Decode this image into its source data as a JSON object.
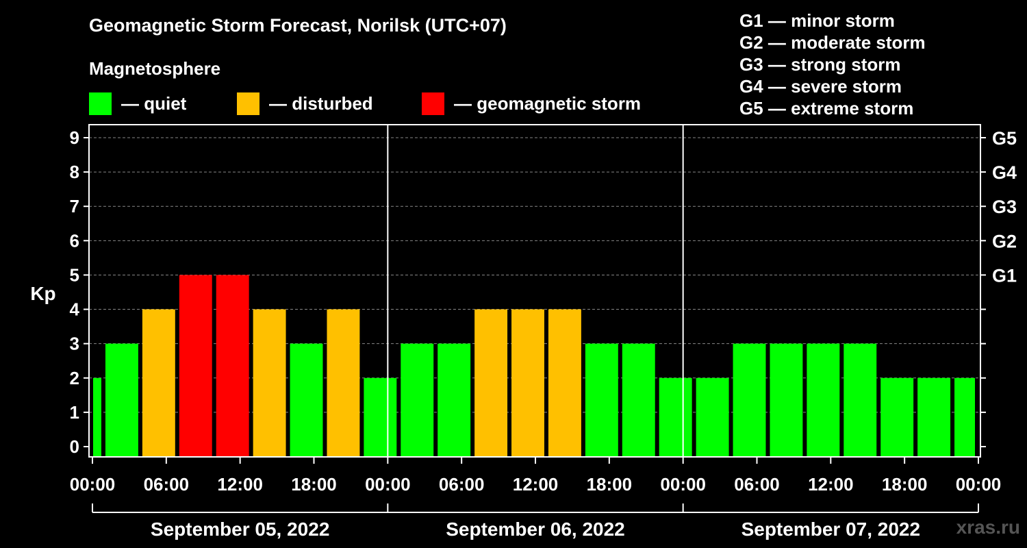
{
  "title": "Geomagnetic Storm Forecast, Norilsk (UTC+07)",
  "subtitle": "Magnetosphere",
  "legend": [
    {
      "label": "— quiet",
      "color": "#00ff00"
    },
    {
      "label": "— disturbed",
      "color": "#ffc000"
    },
    {
      "label": "— geomagnetic storm",
      "color": "#ff0000"
    }
  ],
  "g_scale": [
    "G1 — minor storm",
    "G2 — moderate storm",
    "G3 — strong storm",
    "G4 — severe storm",
    "G5 — extreme storm"
  ],
  "watermark": "xras.ru",
  "chart_data": {
    "type": "bar",
    "ylabel": "Kp",
    "ylim": [
      0,
      9
    ],
    "yticks": [
      0,
      1,
      2,
      3,
      4,
      5,
      6,
      7,
      8,
      9
    ],
    "right_ticks": [
      {
        "value": 5,
        "label": "G1"
      },
      {
        "value": 6,
        "label": "G2"
      },
      {
        "value": 7,
        "label": "G3"
      },
      {
        "value": 8,
        "label": "G4"
      },
      {
        "value": 9,
        "label": "G5"
      }
    ],
    "x_tick_labels": [
      "00:00",
      "06:00",
      "12:00",
      "18:00",
      "00:00",
      "06:00",
      "12:00",
      "18:00",
      "00:00",
      "06:00",
      "12:00",
      "18:00",
      "00:00"
    ],
    "days": [
      "September 05, 2022",
      "September 06, 2022",
      "September 07, 2022"
    ],
    "grid": "horizontal dashed",
    "colors": {
      "quiet": "#00ff00",
      "disturbed": "#ffc000",
      "storm": "#ff0000"
    },
    "bars": [
      {
        "start": "2022-09-05 00:00",
        "end": "2022-09-05 01:00",
        "kp": 2,
        "level": "quiet"
      },
      {
        "start": "2022-09-05 01:00",
        "end": "2022-09-05 04:00",
        "kp": 3,
        "level": "quiet"
      },
      {
        "start": "2022-09-05 04:00",
        "end": "2022-09-05 07:00",
        "kp": 4,
        "level": "disturbed"
      },
      {
        "start": "2022-09-05 07:00",
        "end": "2022-09-05 10:00",
        "kp": 5,
        "level": "storm"
      },
      {
        "start": "2022-09-05 10:00",
        "end": "2022-09-05 13:00",
        "kp": 5,
        "level": "storm"
      },
      {
        "start": "2022-09-05 13:00",
        "end": "2022-09-05 16:00",
        "kp": 4,
        "level": "disturbed"
      },
      {
        "start": "2022-09-05 16:00",
        "end": "2022-09-05 19:00",
        "kp": 3,
        "level": "quiet"
      },
      {
        "start": "2022-09-05 19:00",
        "end": "2022-09-05 22:00",
        "kp": 4,
        "level": "disturbed"
      },
      {
        "start": "2022-09-05 22:00",
        "end": "2022-09-06 01:00",
        "kp": 2,
        "level": "quiet"
      },
      {
        "start": "2022-09-06 01:00",
        "end": "2022-09-06 04:00",
        "kp": 3,
        "level": "quiet"
      },
      {
        "start": "2022-09-06 04:00",
        "end": "2022-09-06 07:00",
        "kp": 3,
        "level": "quiet"
      },
      {
        "start": "2022-09-06 07:00",
        "end": "2022-09-06 10:00",
        "kp": 4,
        "level": "disturbed"
      },
      {
        "start": "2022-09-06 10:00",
        "end": "2022-09-06 13:00",
        "kp": 4,
        "level": "disturbed"
      },
      {
        "start": "2022-09-06 13:00",
        "end": "2022-09-06 16:00",
        "kp": 4,
        "level": "disturbed"
      },
      {
        "start": "2022-09-06 16:00",
        "end": "2022-09-06 19:00",
        "kp": 3,
        "level": "quiet"
      },
      {
        "start": "2022-09-06 19:00",
        "end": "2022-09-06 22:00",
        "kp": 3,
        "level": "quiet"
      },
      {
        "start": "2022-09-06 22:00",
        "end": "2022-09-07 01:00",
        "kp": 2,
        "level": "quiet"
      },
      {
        "start": "2022-09-07 01:00",
        "end": "2022-09-07 04:00",
        "kp": 2,
        "level": "quiet"
      },
      {
        "start": "2022-09-07 04:00",
        "end": "2022-09-07 07:00",
        "kp": 3,
        "level": "quiet"
      },
      {
        "start": "2022-09-07 07:00",
        "end": "2022-09-07 10:00",
        "kp": 3,
        "level": "quiet"
      },
      {
        "start": "2022-09-07 10:00",
        "end": "2022-09-07 13:00",
        "kp": 3,
        "level": "quiet"
      },
      {
        "start": "2022-09-07 13:00",
        "end": "2022-09-07 16:00",
        "kp": 3,
        "level": "quiet"
      },
      {
        "start": "2022-09-07 16:00",
        "end": "2022-09-07 19:00",
        "kp": 2,
        "level": "quiet"
      },
      {
        "start": "2022-09-07 19:00",
        "end": "2022-09-07 22:00",
        "kp": 2,
        "level": "quiet"
      },
      {
        "start": "2022-09-07 22:00",
        "end": "2022-09-08 00:00",
        "kp": 2,
        "level": "quiet"
      }
    ]
  }
}
